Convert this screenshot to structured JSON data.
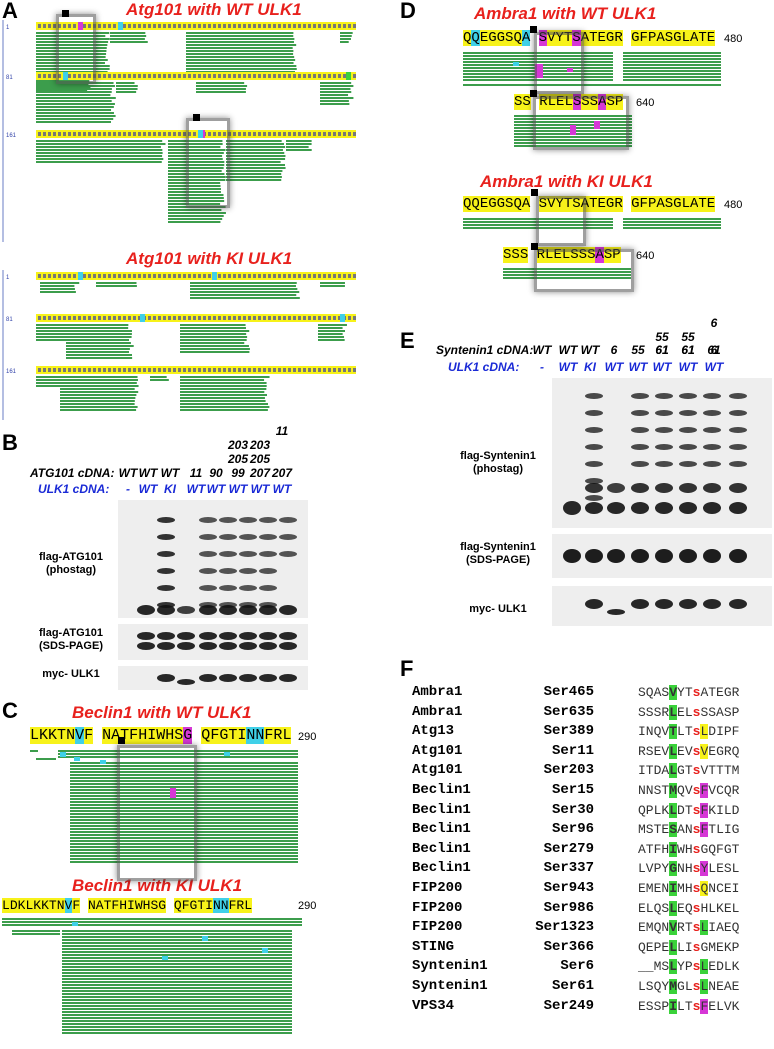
{
  "panelA": {
    "label": "A",
    "wt_title": "Atg101 with WT ULK1",
    "ki_title": "Atg101 with KI ULK1",
    "row_numbers": [
      "1",
      "81",
      "161"
    ]
  },
  "panelB": {
    "label": "B",
    "cdna_header": "ATG101 cDNA:",
    "ulk_header": "ULK1  cDNA:",
    "stack_top": [
      "",
      "",
      "",
      "",
      "",
      "",
      "",
      "11"
    ],
    "stack_203": [
      "",
      "",
      "",
      "",
      "",
      "203",
      "203",
      ""
    ],
    "stack_205": [
      "",
      "",
      "",
      "",
      "",
      "205",
      "205",
      ""
    ],
    "cdna": [
      "WT",
      "WT",
      "WT",
      "11",
      "90",
      "99",
      "207",
      "207"
    ],
    "ulk": [
      "-",
      "WT",
      "KI",
      "WT",
      "WT",
      "WT",
      "WT",
      "WT"
    ],
    "blots": [
      "flag-ATG101\n(phostag)",
      "flag-ATG101\n(SDS-PAGE)",
      "myc- ULK1"
    ]
  },
  "panelC": {
    "label": "C",
    "wt_title": "Beclin1 with WT ULK1",
    "ki_title": "Beclin1 with KI ULK1",
    "wt_seq": "LKKTNVF NATFHIWHSG QFGTINNFRL",
    "ki_seq": "LDKLKKTNVF NATFHIWHSG QFGTINNFRL",
    "pos": "290"
  },
  "panelD": {
    "label": "D",
    "wt_title": "Ambra1 with WT ULK1",
    "ki_title": "Ambra1 with KI ULK1",
    "wt_seq1": "QQEGGSQA SVYTSATEGR GFPASGLATE",
    "seq2": "SS RLELSSSASP",
    "ki_seq1": "QQEGGSQA SVYTSATEGR GFPASGLATE",
    "ki_seq2": "SSS RLELSSSASP",
    "pos1": "480",
    "pos2": "640"
  },
  "panelE": {
    "label": "E",
    "cdna_header": "Syntenin1 cDNA:",
    "ulk_header": "ULK1  cDNA:",
    "stack_top": [
      "",
      "",
      "",
      "",
      "",
      "",
      "",
      "6"
    ],
    "stack_55": [
      "",
      "",
      "",
      "",
      "",
      "55",
      "55",
      ""
    ],
    "stack_61": [
      "",
      "",
      "",
      "",
      "",
      "61",
      "61",
      "6"
    ],
    "cdna": [
      "WT",
      "WT",
      "WT",
      "6",
      "55",
      "61",
      "61",
      "61"
    ],
    "ulk": [
      "-",
      "WT",
      "KI",
      "WT",
      "WT",
      "WT",
      "WT",
      "WT"
    ],
    "blots": [
      "flag-Syntenin1\n(phostag)",
      "flag-Syntenin1\n(SDS-PAGE)",
      "myc- ULK1"
    ]
  },
  "panelF": {
    "label": "F",
    "rows": [
      {
        "protein": "Ambra1",
        "site": "Ser465",
        "pre": "SQAS",
        "h1": "V",
        "mid": "YT",
        "s": "s",
        "h2": "",
        "post": "ATEGR",
        "c2": ""
      },
      {
        "protein": "Ambra1",
        "site": "Ser635",
        "pre": "SSSR",
        "h1": "L",
        "mid": "EL",
        "s": "s",
        "h2": "",
        "post": "SSASP",
        "c2": ""
      },
      {
        "protein": "Atg13",
        "site": "Ser389",
        "pre": "INQV",
        "h1": "T",
        "mid": "LT",
        "s": "s",
        "h2": "L",
        "post": "DIPF",
        "c2": "yellow"
      },
      {
        "protein": "Atg101",
        "site": "Ser11",
        "pre": "RSEV",
        "h1": "L",
        "mid": "EV",
        "s": "s",
        "h2": "V",
        "post": "EGRQ",
        "c2": "yellow"
      },
      {
        "protein": "Atg101",
        "site": "Ser203",
        "pre": "ITDA",
        "h1": "L",
        "mid": "GT",
        "s": "s",
        "h2": "",
        "post": "VTTTM",
        "c2": ""
      },
      {
        "protein": "Beclin1",
        "site": "Ser15",
        "pre": "NNST",
        "h1": "M",
        "mid": "QV",
        "s": "s",
        "h2": "F",
        "post": "VCQR",
        "c2": "magenta"
      },
      {
        "protein": "Beclin1",
        "site": "Ser30",
        "pre": "QPLK",
        "h1": "L",
        "mid": "DT",
        "s": "s",
        "h2": "F",
        "post": "KILD",
        "c2": "magenta"
      },
      {
        "protein": "Beclin1",
        "site": "Ser96",
        "pre": "MSTE",
        "h1": "S",
        "mid": "AN",
        "s": "s",
        "h2": "F",
        "post": "TLIG",
        "c2": "magenta"
      },
      {
        "protein": "Beclin1",
        "site": "Ser279",
        "pre": "ATFH",
        "h1": "I",
        "mid": "WH",
        "s": "s",
        "h2": "",
        "post": "GQFGT",
        "c2": ""
      },
      {
        "protein": "Beclin1",
        "site": "Ser337",
        "pre": "LVPY",
        "h1": "G",
        "mid": "NH",
        "s": "s",
        "h2": "Y",
        "post": "LESL",
        "c2": "magenta"
      },
      {
        "protein": "FIP200",
        "site": "Ser943",
        "pre": "EMEN",
        "h1": "I",
        "mid": "MH",
        "s": "s",
        "h2": "Q",
        "post": "NCEI",
        "c2": "yellow"
      },
      {
        "protein": "FIP200",
        "site": "Ser986",
        "pre": "ELQS",
        "h1": "L",
        "mid": "EQ",
        "s": "s",
        "h2": "",
        "post": "HLKEL",
        "c2": ""
      },
      {
        "protein": "FIP200",
        "site": "Ser1323",
        "pre": "EMQN",
        "h1": "V",
        "mid": "RT",
        "s": "s",
        "h2": "L",
        "post": "IAEQ",
        "c2": "green"
      },
      {
        "protein": "STING",
        "site": "Ser366",
        "pre": "QEPE",
        "h1": "L",
        "mid": "LI",
        "s": "s",
        "h2": "",
        "post": "GMEKP",
        "c2": ""
      },
      {
        "protein": "Syntenin1",
        "site": "Ser6",
        "pre": "__MS",
        "h1": "L",
        "mid": "YP",
        "s": "s",
        "h2": "L",
        "post": "EDLK",
        "c2": "green"
      },
      {
        "protein": "Syntenin1",
        "site": "Ser61",
        "pre": "LSQY",
        "h1": "M",
        "mid": "GL",
        "s": "s",
        "h2": "L",
        "post": "NEAE",
        "c2": "green"
      },
      {
        "protein": "VPS34",
        "site": "Ser249",
        "pre": "ESSP",
        "h1": "I",
        "mid": "LT",
        "s": "s",
        "h2": "F",
        "post": "ELVK",
        "c2": "magenta"
      }
    ]
  },
  "colors": {
    "title_red": "#e8211d",
    "ulk_blue": "#1a2ad6",
    "hl_yellow": "#f7f21a",
    "hl_green": "#3ad23a",
    "hl_magenta": "#d637d6",
    "hl_cyan": "#3fd0e8",
    "peptide_green": "#3c9d4c"
  }
}
